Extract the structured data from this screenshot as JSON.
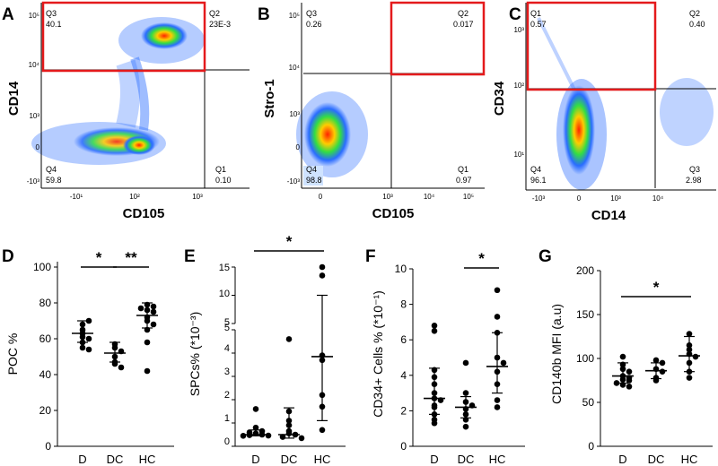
{
  "colors": {
    "gate": "#e41a1c",
    "sig": "#000000",
    "axis": "#000000",
    "point": "#000000"
  },
  "chart_data": [
    {
      "type": "scatter",
      "panel": "A",
      "xlabel": "CD105",
      "ylabel": "CD14",
      "x_ticks": [
        "-10¹",
        "10²",
        "10³"
      ],
      "y_ticks": [
        "10⁵",
        "10⁴",
        "10³",
        "0",
        "-10³"
      ],
      "quadrants": [
        {
          "name": "Q3",
          "value": "40.1"
        },
        {
          "name": "Q2",
          "value": "23E-3"
        },
        {
          "name": "Q4",
          "value": "59.8"
        },
        {
          "name": "Q1",
          "value": "0.10"
        }
      ]
    },
    {
      "type": "scatter",
      "panel": "B",
      "xlabel": "CD105",
      "ylabel": "Stro-1",
      "x_ticks": [
        "0",
        "10³",
        "10⁴",
        "10⁵"
      ],
      "y_ticks": [
        "10⁵",
        "10⁴",
        "10³",
        "0",
        "-10³"
      ],
      "quadrants": [
        {
          "name": "Q3",
          "value": "0.26"
        },
        {
          "name": "Q2",
          "value": "0.017"
        },
        {
          "name": "Q4",
          "value": "98.8"
        },
        {
          "name": "Q1",
          "value": "0.97"
        }
      ]
    },
    {
      "type": "scatter",
      "panel": "C",
      "xlabel": "CD14",
      "ylabel": "CD34",
      "x_ticks": [
        "-10³",
        "0",
        "10³",
        "10⁴"
      ],
      "y_ticks": [
        "10³",
        "10²",
        "10¹"
      ],
      "quadrants": [
        {
          "name": "Q1",
          "value": "0.57"
        },
        {
          "name": "Q2",
          "value": "0.40"
        },
        {
          "name": "Q4",
          "value": "96.1"
        },
        {
          "name": "Q3",
          "value": "2.98"
        }
      ]
    },
    {
      "type": "scatter",
      "panel": "D",
      "ylabel": "POC %",
      "categories": [
        "D",
        "DC",
        "HC"
      ],
      "ylim": [
        0,
        100
      ],
      "yticks": [
        0,
        20,
        40,
        60,
        80,
        100
      ],
      "groups": [
        {
          "name": "D",
          "values": [
            68,
            70,
            65,
            63,
            61,
            60,
            58,
            55,
            54
          ],
          "mean": 63,
          "err": [
            58,
            70
          ]
        },
        {
          "name": "DC",
          "values": [
            57,
            55,
            53,
            50,
            47,
            46,
            44
          ],
          "mean": 52,
          "err": [
            47,
            58
          ]
        },
        {
          "name": "HC",
          "values": [
            79,
            78,
            77,
            76,
            75,
            72,
            70,
            68,
            65,
            58,
            42
          ],
          "mean": 73,
          "err": [
            66,
            80
          ]
        }
      ],
      "significance": [
        {
          "from": "D",
          "to": "DC",
          "label": "*"
        },
        {
          "from": "DC",
          "to": "HC",
          "label": "**"
        }
      ]
    },
    {
      "type": "scatter",
      "panel": "E",
      "ylabel": "SPCs% (*10⁻³)",
      "categories": [
        "D",
        "DC",
        "HC"
      ],
      "ylim_lower": [
        0,
        5
      ],
      "ylim_upper": [
        5,
        15
      ],
      "yticks": [
        "0",
        "1",
        "2",
        "3",
        "4",
        "5",
        "5",
        "10",
        "15"
      ],
      "groups": [
        {
          "name": "D",
          "values": [
            1.6,
            0.8,
            0.65,
            0.6,
            0.55,
            0.5,
            0.48,
            0.46,
            0.45
          ],
          "mean": 0.5,
          "err": [
            0.45,
            0.7
          ]
        },
        {
          "name": "DC",
          "values": [
            4.6,
            1.5,
            1.1,
            0.9,
            0.65,
            0.55,
            0.5,
            0.4,
            0.35
          ],
          "mean": 0.5,
          "err": [
            0.35,
            1.65
          ]
        },
        {
          "name": "HC",
          "values": [
            15,
            13.5,
            3.9,
            3.7,
            2.2,
            1.7,
            0.7
          ],
          "mean": 3.85,
          "err": [
            1.1,
            10
          ]
        }
      ],
      "significance": [
        {
          "from": "D",
          "to": "HC",
          "label": "*"
        }
      ]
    },
    {
      "type": "scatter",
      "panel": "F",
      "ylabel": "CD34+ Cells % (*10⁻¹)",
      "categories": [
        "D",
        "DC",
        "HC"
      ],
      "ylim": [
        0,
        10
      ],
      "yticks": [
        0,
        2,
        4,
        6,
        8,
        10
      ],
      "groups": [
        {
          "name": "D",
          "values": [
            6.8,
            6.5,
            4.3,
            3.9,
            3.5,
            3.0,
            2.7,
            2.6,
            2.3,
            2.2,
            1.8,
            1.5,
            1.3
          ],
          "mean": 2.7,
          "err": [
            1.8,
            4.4
          ]
        },
        {
          "name": "DC",
          "values": [
            4.7,
            3.0,
            2.5,
            2.3,
            2.1,
            1.8,
            1.5,
            1.1
          ],
          "mean": 2.2,
          "err": [
            1.6,
            2.8
          ]
        },
        {
          "name": "HC",
          "values": [
            8.8,
            7.3,
            6.4,
            5.0,
            4.7,
            4.2,
            3.5,
            2.6,
            2.2
          ],
          "mean": 4.5,
          "err": [
            3.0,
            6.4
          ]
        }
      ],
      "significance": [
        {
          "from": "DC",
          "to": "HC",
          "label": "*"
        }
      ]
    },
    {
      "type": "scatter",
      "panel": "G",
      "ylabel": "CD140b  MFI  (a.u)",
      "categories": [
        "D",
        "DC",
        "HC"
      ],
      "ylim": [
        0,
        200
      ],
      "yticks": [
        0,
        50,
        100,
        150,
        200
      ],
      "groups": [
        {
          "name": "D",
          "values": [
            102,
            93,
            88,
            85,
            80,
            78,
            76,
            75,
            72,
            70,
            68
          ],
          "mean": 80,
          "err": [
            72,
            95
          ]
        },
        {
          "name": "DC",
          "values": [
            98,
            95,
            88,
            85,
            78,
            75
          ],
          "mean": 86,
          "err": [
            77,
            95
          ]
        },
        {
          "name": "HC",
          "values": [
            128,
            115,
            110,
            105,
            102,
            95,
            85,
            78
          ],
          "mean": 103,
          "err": [
            85,
            125
          ]
        }
      ],
      "significance": [
        {
          "from": "D",
          "to": "HC",
          "label": "*"
        }
      ]
    }
  ]
}
